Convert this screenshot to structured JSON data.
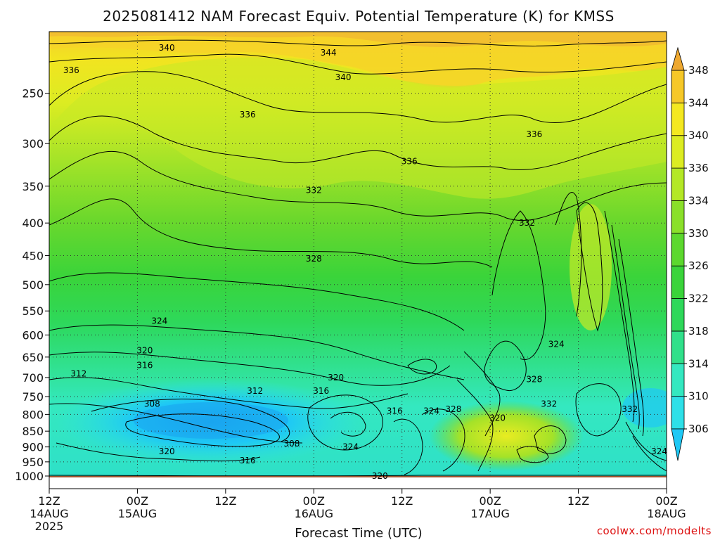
{
  "chart_data": {
    "type": "heatmap",
    "title": "2025081412 NAM Forecast Equiv. Potential Temperature (K) for KMSS",
    "xlabel": "Forecast Time (UTC)",
    "ylabel": "",
    "y_scale": "log-pressure",
    "ylim": [
      1000,
      200
    ],
    "y_ticks": [
      250,
      300,
      350,
      400,
      450,
      500,
      550,
      600,
      650,
      700,
      750,
      800,
      850,
      900,
      950,
      1000
    ],
    "x_ticks": [
      {
        "line1": "12Z",
        "line2": "14AUG",
        "line3": "2025"
      },
      {
        "line1": "00Z",
        "line2": "15AUG",
        "line3": ""
      },
      {
        "line1": "12Z",
        "line2": "",
        "line3": ""
      },
      {
        "line1": "00Z",
        "line2": "16AUG",
        "line3": ""
      },
      {
        "line1": "12Z",
        "line2": "",
        "line3": ""
      },
      {
        "line1": "00Z",
        "line2": "17AUG",
        "line3": ""
      },
      {
        "line1": "12Z",
        "line2": "",
        "line3": ""
      },
      {
        "line1": "00Z",
        "line2": "18AUG",
        "line3": ""
      }
    ],
    "x_hours": [
      0,
      12,
      24,
      36,
      48,
      60,
      72,
      84
    ],
    "colorbar": {
      "labels": [
        306,
        310,
        314,
        318,
        322,
        326,
        330,
        334,
        336,
        340,
        344,
        348
      ],
      "colors": [
        "#1ec8f5",
        "#2ee0e8",
        "#34e8c0",
        "#30e08a",
        "#2ed85a",
        "#3ad43a",
        "#5cd82e",
        "#8ae02a",
        "#b4e826",
        "#dcec22",
        "#f4e820",
        "#f6c828",
        "#eea830"
      ]
    },
    "contour_labels": [
      {
        "text": "340",
        "t": 16,
        "p": 212
      },
      {
        "text": "344",
        "t": 38,
        "p": 216
      },
      {
        "text": "336",
        "t": 3,
        "p": 230
      },
      {
        "text": "340",
        "t": 40,
        "p": 236
      },
      {
        "text": "336",
        "t": 27,
        "p": 270
      },
      {
        "text": "336",
        "t": 66,
        "p": 290
      },
      {
        "text": "336",
        "t": 49,
        "p": 320
      },
      {
        "text": "332",
        "t": 36,
        "p": 355
      },
      {
        "text": "332",
        "t": 65,
        "p": 400
      },
      {
        "text": "328",
        "t": 36,
        "p": 455
      },
      {
        "text": "324",
        "t": 15,
        "p": 570
      },
      {
        "text": "324",
        "t": 69,
        "p": 620
      },
      {
        "text": "320",
        "t": 13,
        "p": 635
      },
      {
        "text": "316",
        "t": 13,
        "p": 670
      },
      {
        "text": "312",
        "t": 4,
        "p": 690
      },
      {
        "text": "320",
        "t": 39,
        "p": 700
      },
      {
        "text": "312",
        "t": 28,
        "p": 735
      },
      {
        "text": "316",
        "t": 37,
        "p": 735
      },
      {
        "text": "328",
        "t": 66,
        "p": 705
      },
      {
        "text": "308",
        "t": 14,
        "p": 770
      },
      {
        "text": "332",
        "t": 68,
        "p": 770
      },
      {
        "text": "316",
        "t": 47,
        "p": 790
      },
      {
        "text": "324",
        "t": 52,
        "p": 790
      },
      {
        "text": "328",
        "t": 55,
        "p": 785
      },
      {
        "text": "332",
        "t": 79,
        "p": 785
      },
      {
        "text": "320",
        "t": 61,
        "p": 810
      },
      {
        "text": "308",
        "t": 33,
        "p": 890
      },
      {
        "text": "324",
        "t": 41,
        "p": 900
      },
      {
        "text": "320",
        "t": 16,
        "p": 915
      },
      {
        "text": "316",
        "t": 27,
        "p": 945
      },
      {
        "text": "324",
        "t": 83,
        "p": 915
      },
      {
        "text": "320",
        "t": 45,
        "p": 1000
      }
    ],
    "colors": {
      "ground": "#a0522d",
      "cold_core": "#1ec8f5",
      "upper_warm": "#f4c428"
    }
  },
  "credit": "coolwx.com/modelts"
}
